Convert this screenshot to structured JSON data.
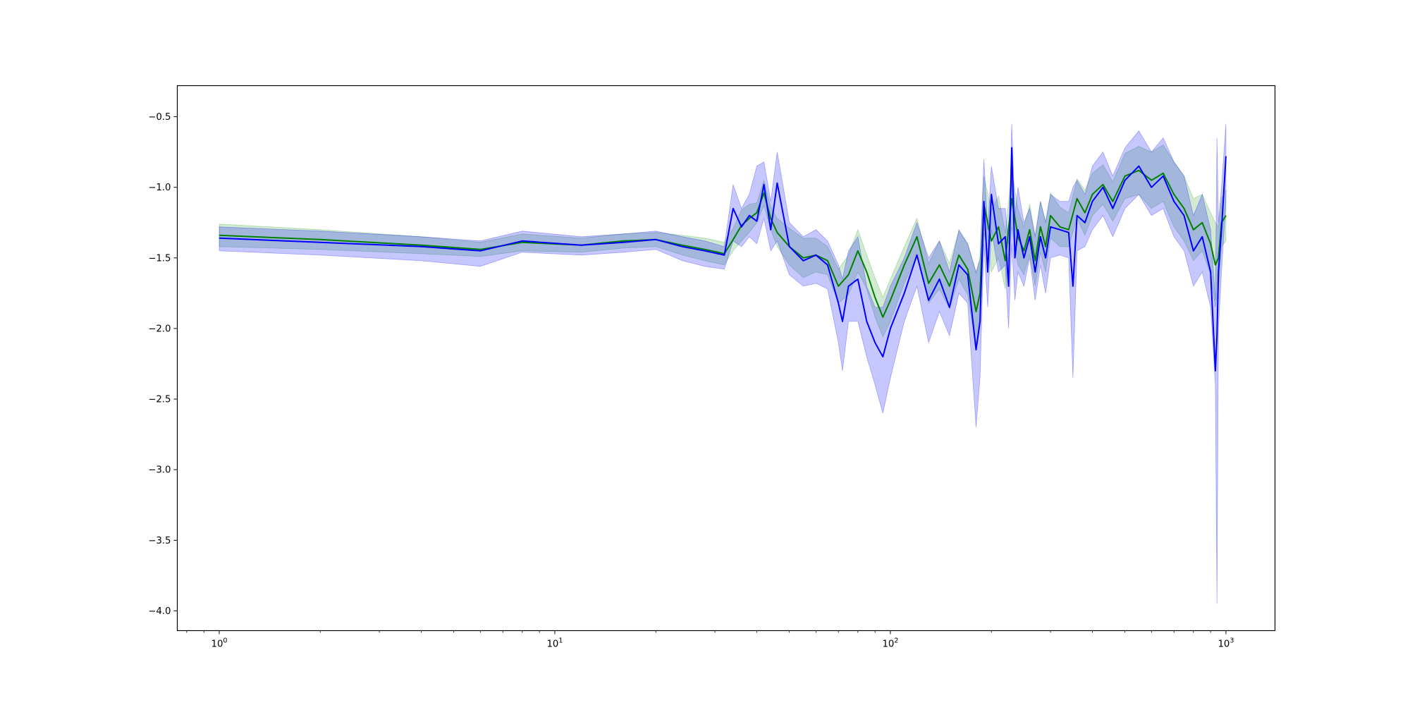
{
  "chart_data": {
    "type": "line",
    "title": "",
    "xlabel": "",
    "ylabel": "",
    "xscale": "log",
    "xlim": [
      0.75,
      1400
    ],
    "ylim": [
      -4.14,
      -0.28
    ],
    "grid": false,
    "legend": "none",
    "y_ticks": [
      -0.5,
      -1.0,
      -1.5,
      -2.0,
      -2.5,
      -3.0,
      -3.5,
      -4.0
    ],
    "y_tick_labels": [
      "−0.5",
      "−1.0",
      "−1.5",
      "−2.0",
      "−2.5",
      "−3.0",
      "−3.5",
      "−4.0"
    ],
    "x_ticks": [
      {
        "value": 1,
        "base": "10",
        "exp": "0"
      },
      {
        "value": 10,
        "base": "10",
        "exp": "1"
      },
      {
        "value": 100,
        "base": "10",
        "exp": "2"
      },
      {
        "value": 1000,
        "base": "10",
        "exp": "3"
      }
    ],
    "series": [
      {
        "color": "#008000",
        "band_color": "#2ca02c",
        "x": [
          1,
          2,
          4,
          6,
          8,
          12,
          16,
          20,
          24,
          28,
          32,
          34,
          36,
          38,
          40,
          42,
          44,
          46,
          50,
          55,
          60,
          65,
          70,
          75,
          80,
          85,
          90,
          95,
          100,
          110,
          120,
          130,
          140,
          150,
          160,
          170,
          180,
          185,
          190,
          200,
          210,
          220,
          230,
          240,
          250,
          260,
          270,
          280,
          290,
          300,
          320,
          340,
          360,
          380,
          400,
          430,
          460,
          500,
          550,
          600,
          650,
          700,
          750,
          800,
          850,
          900,
          930,
          950,
          970,
          1000
        ],
        "y": [
          -1.34,
          -1.37,
          -1.41,
          -1.44,
          -1.39,
          -1.41,
          -1.38,
          -1.37,
          -1.41,
          -1.44,
          -1.47,
          -1.37,
          -1.27,
          -1.22,
          -1.18,
          -1.04,
          -1.22,
          -1.32,
          -1.42,
          -1.5,
          -1.48,
          -1.52,
          -1.7,
          -1.62,
          -1.45,
          -1.6,
          -1.78,
          -1.92,
          -1.8,
          -1.55,
          -1.35,
          -1.68,
          -1.55,
          -1.7,
          -1.48,
          -1.58,
          -1.88,
          -1.75,
          -1.12,
          -1.38,
          -1.28,
          -1.52,
          -1.08,
          -1.35,
          -1.45,
          -1.3,
          -1.52,
          -1.28,
          -1.42,
          -1.2,
          -1.28,
          -1.3,
          -1.08,
          -1.18,
          -1.05,
          -0.98,
          -1.1,
          -0.92,
          -0.88,
          -0.95,
          -0.9,
          -1.05,
          -1.15,
          -1.3,
          -1.25,
          -1.4,
          -1.55,
          -1.5,
          -1.25,
          -1.2
        ],
        "lower": [
          -1.42,
          -1.44,
          -1.47,
          -1.49,
          -1.45,
          -1.46,
          -1.43,
          -1.42,
          -1.48,
          -1.52,
          -1.55,
          -1.45,
          -1.38,
          -1.32,
          -1.25,
          -1.13,
          -1.3,
          -1.42,
          -1.55,
          -1.64,
          -1.6,
          -1.62,
          -1.82,
          -1.76,
          -1.6,
          -1.72,
          -1.92,
          -2.06,
          -1.95,
          -1.68,
          -1.48,
          -1.82,
          -1.72,
          -1.86,
          -1.65,
          -1.76,
          -2.15,
          -1.98,
          -1.32,
          -1.6,
          -1.5,
          -1.72,
          -1.28,
          -1.55,
          -1.62,
          -1.48,
          -1.7,
          -1.46,
          -1.6,
          -1.36,
          -1.42,
          -1.42,
          -1.22,
          -1.34,
          -1.2,
          -1.12,
          -1.24,
          -1.08,
          -1.05,
          -1.15,
          -1.1,
          -1.28,
          -1.38,
          -1.52,
          -1.45,
          -1.62,
          -1.85,
          -1.72,
          -1.42,
          -1.38
        ],
        "upper": [
          -1.26,
          -1.3,
          -1.35,
          -1.39,
          -1.33,
          -1.36,
          -1.33,
          -1.32,
          -1.34,
          -1.36,
          -1.39,
          -1.29,
          -1.16,
          -1.12,
          -1.11,
          -0.95,
          -1.14,
          -1.22,
          -1.29,
          -1.36,
          -1.36,
          -1.42,
          -1.58,
          -1.48,
          -1.3,
          -1.48,
          -1.64,
          -1.78,
          -1.65,
          -1.42,
          -1.22,
          -1.54,
          -1.38,
          -1.54,
          -1.31,
          -1.4,
          -1.61,
          -1.52,
          -0.92,
          -1.16,
          -1.06,
          -1.32,
          -0.88,
          -1.15,
          -1.28,
          -1.12,
          -1.34,
          -1.1,
          -1.24,
          -1.04,
          -1.14,
          -1.18,
          -0.94,
          -1.02,
          -0.9,
          -0.84,
          -0.96,
          -0.76,
          -0.71,
          -0.75,
          -0.7,
          -0.82,
          -0.92,
          -1.08,
          -1.05,
          -1.18,
          -1.25,
          -1.28,
          -1.08,
          -1.02
        ]
      },
      {
        "color": "#0000ff",
        "band_color": "#0000ff",
        "x": [
          1,
          2,
          4,
          6,
          8,
          12,
          16,
          20,
          24,
          28,
          32,
          34,
          36,
          38,
          40,
          42,
          44,
          46,
          50,
          55,
          60,
          65,
          70,
          72,
          75,
          80,
          85,
          90,
          95,
          100,
          110,
          120,
          130,
          140,
          150,
          160,
          170,
          180,
          185,
          190,
          195,
          200,
          210,
          220,
          225,
          230,
          235,
          240,
          250,
          260,
          270,
          280,
          290,
          300,
          320,
          340,
          350,
          360,
          380,
          400,
          430,
          460,
          500,
          550,
          600,
          650,
          700,
          750,
          800,
          850,
          900,
          930,
          940,
          950,
          970,
          1000
        ],
        "y": [
          -1.36,
          -1.39,
          -1.42,
          -1.45,
          -1.38,
          -1.41,
          -1.39,
          -1.37,
          -1.42,
          -1.45,
          -1.48,
          -1.15,
          -1.28,
          -1.2,
          -1.24,
          -0.98,
          -1.3,
          -0.97,
          -1.42,
          -1.52,
          -1.48,
          -1.55,
          -1.82,
          -1.95,
          -1.7,
          -1.65,
          -1.95,
          -2.1,
          -2.2,
          -2.0,
          -1.75,
          -1.48,
          -1.8,
          -1.65,
          -1.85,
          -1.55,
          -1.62,
          -2.15,
          -1.95,
          -1.1,
          -1.6,
          -1.05,
          -1.4,
          -1.35,
          -1.7,
          -0.72,
          -1.5,
          -1.3,
          -1.5,
          -1.35,
          -1.6,
          -1.35,
          -1.5,
          -1.28,
          -1.3,
          -1.32,
          -1.7,
          -1.2,
          -1.25,
          -1.1,
          -1.0,
          -1.15,
          -0.95,
          -0.85,
          -1.0,
          -0.92,
          -1.1,
          -1.2,
          -1.45,
          -1.35,
          -1.6,
          -2.3,
          -2.05,
          -1.6,
          -1.3,
          -0.78
        ],
        "lower": [
          -1.45,
          -1.48,
          -1.52,
          -1.56,
          -1.46,
          -1.48,
          -1.46,
          -1.44,
          -1.52,
          -1.56,
          -1.58,
          -1.38,
          -1.42,
          -1.35,
          -1.4,
          -1.22,
          -1.45,
          -1.38,
          -1.62,
          -1.7,
          -1.68,
          -1.72,
          -2.1,
          -2.3,
          -1.95,
          -1.95,
          -2.2,
          -2.4,
          -2.6,
          -2.35,
          -1.95,
          -1.7,
          -2.1,
          -1.88,
          -2.05,
          -1.75,
          -1.82,
          -2.7,
          -2.35,
          -1.4,
          -1.85,
          -1.3,
          -1.6,
          -1.55,
          -2.0,
          -1.4,
          -1.8,
          -1.6,
          -1.7,
          -1.5,
          -1.8,
          -1.55,
          -1.75,
          -1.5,
          -1.48,
          -1.5,
          -2.35,
          -1.45,
          -1.42,
          -1.3,
          -1.2,
          -1.35,
          -1.15,
          -1.05,
          -1.2,
          -1.15,
          -1.35,
          -1.45,
          -1.7,
          -1.6,
          -1.85,
          -2.4,
          -3.95,
          -2.0,
          -1.6,
          -1.1
        ],
        "upper": [
          -1.28,
          -1.31,
          -1.35,
          -1.38,
          -1.31,
          -1.35,
          -1.33,
          -1.31,
          -1.35,
          -1.38,
          -1.42,
          -0.98,
          -1.15,
          -1.05,
          -0.85,
          -0.82,
          -1.1,
          -0.75,
          -1.25,
          -1.35,
          -1.3,
          -1.38,
          -1.55,
          -1.65,
          -1.45,
          -1.35,
          -1.7,
          -1.85,
          -1.85,
          -1.7,
          -1.5,
          -1.25,
          -1.5,
          -1.38,
          -1.6,
          -1.3,
          -1.4,
          -1.6,
          -1.5,
          -0.8,
          -1.3,
          -0.85,
          -1.15,
          -1.15,
          -1.4,
          -0.55,
          -1.2,
          -1.0,
          -1.25,
          -1.15,
          -1.35,
          -1.1,
          -1.25,
          -1.05,
          -1.1,
          -1.1,
          -1.0,
          -0.95,
          -1.05,
          -0.85,
          -0.75,
          -0.92,
          -0.72,
          -0.6,
          -0.75,
          -0.65,
          -0.82,
          -0.92,
          -1.2,
          -1.05,
          -1.3,
          -1.8,
          -0.65,
          -1.25,
          -1.0,
          -0.55
        ]
      }
    ]
  }
}
